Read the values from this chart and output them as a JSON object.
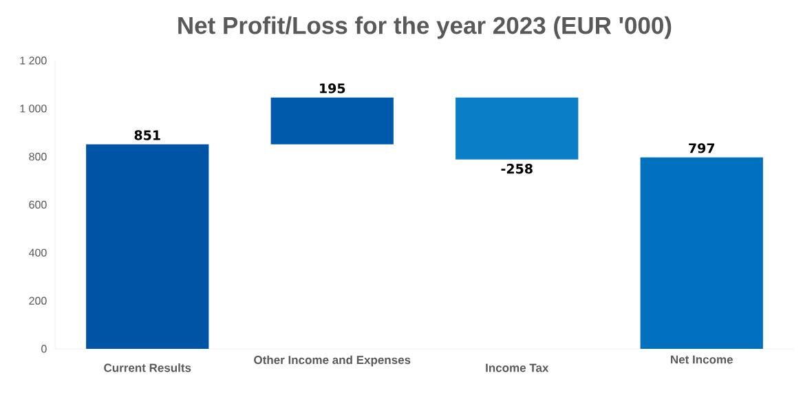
{
  "chart_data": {
    "type": "bar",
    "title": "Net Profit/Loss for the year 2023 (EUR '000)",
    "categories": [
      "Current Results",
      "Other Income and Expenses",
      "Income Tax",
      "Net Income"
    ],
    "values": [
      851,
      195,
      -258,
      797
    ],
    "base": [
      0,
      851,
      1046,
      0
    ],
    "colors": [
      "#0054a6",
      "#005aac",
      "#0a7ec6",
      "#0070bf"
    ],
    "ylim": [
      0,
      1200
    ],
    "yticks": [
      0,
      200,
      400,
      600,
      800,
      {
        "value": 1000,
        "label": "1 000"
      },
      {
        "value": 1200,
        "label": "1 200"
      }
    ],
    "data_labels": true,
    "grid": false
  }
}
